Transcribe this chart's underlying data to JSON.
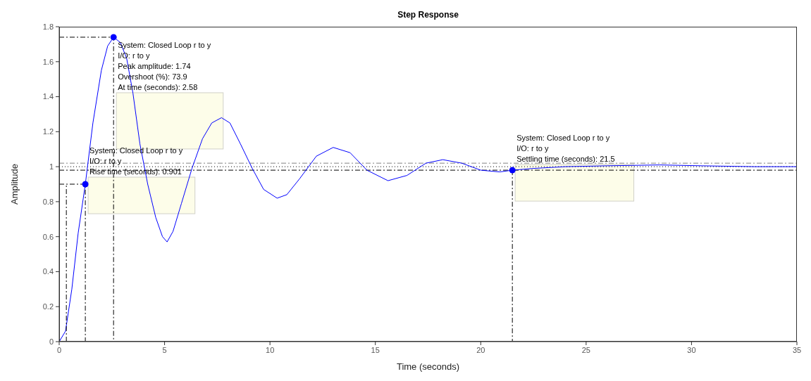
{
  "chart_data": {
    "type": "line",
    "title": "Step Response",
    "xlabel": "Time (seconds)",
    "ylabel": "Amplitude",
    "xlim": [
      0,
      35
    ],
    "xticks": [
      0,
      5,
      10,
      15,
      20,
      25,
      30,
      35
    ],
    "ylim": [
      0,
      1.8
    ],
    "yticks": [
      0,
      0.2,
      0.4,
      0.6,
      0.8,
      1,
      1.2,
      1.4,
      1.6,
      1.8
    ],
    "grid": false,
    "legend": false,
    "series": [
      {
        "type": "line",
        "color": "#0000ff",
        "line_style": "solid",
        "x": [
          0,
          0.3,
          0.6,
          0.9,
          1.24,
          1.6,
          2.0,
          2.3,
          2.58,
          2.9,
          3.2,
          3.5,
          3.83,
          4.2,
          4.58,
          4.9,
          5.12,
          5.4,
          5.8,
          6.3,
          6.8,
          7.24,
          7.7,
          8.1,
          8.6,
          9.16,
          9.7,
          10.34,
          10.8,
          11.4,
          12.2,
          13.0,
          13.8,
          14.6,
          15.6,
          16.5,
          17.4,
          18.2,
          19.1,
          20.0,
          20.9,
          21.5,
          22.5,
          24.0,
          26.0,
          28.5,
          30.5,
          33,
          35
        ],
        "values": [
          0,
          0.06,
          0.3,
          0.62,
          0.9,
          1.25,
          1.55,
          1.69,
          1.74,
          1.71,
          1.62,
          1.42,
          1.13,
          0.9,
          0.71,
          0.6,
          0.57,
          0.63,
          0.79,
          0.99,
          1.16,
          1.25,
          1.28,
          1.25,
          1.13,
          0.99,
          0.87,
          0.82,
          0.84,
          0.93,
          1.06,
          1.11,
          1.08,
          0.98,
          0.92,
          0.95,
          1.02,
          1.04,
          1.02,
          0.98,
          0.97,
          0.98,
          0.99,
          1.0,
          1.005,
          1.01,
          1.005,
          1.0,
          1.0
        ]
      },
      {
        "type": "line",
        "color": "#000000",
        "line_style": "dashed",
        "x": [
          0.34,
          0.34
        ],
        "values": [
          0,
          0.9
        ]
      },
      {
        "type": "line",
        "color": "#000000",
        "line_style": "dashed",
        "x": [
          0,
          1.24,
          1.24
        ],
        "values": [
          0.9,
          0.9,
          0
        ]
      },
      {
        "type": "line",
        "color": "#000000",
        "line_style": "dashed",
        "x": [
          0,
          2.58,
          2.58
        ],
        "values": [
          1.74,
          1.74,
          0
        ]
      },
      {
        "type": "line",
        "color": "#000000",
        "line_style": "dashed",
        "x": [
          21.5,
          21.5
        ],
        "values": [
          0.98,
          0
        ]
      },
      {
        "type": "scatter",
        "color": "#0000ff",
        "marker": "circle",
        "x": [
          1.24,
          2.58,
          21.5
        ],
        "values": [
          0.9,
          1.74,
          0.98
        ]
      }
    ],
    "ref_lines": [
      {
        "axis": "y",
        "value": 1.02,
        "color": "#808080",
        "line_style": "dashed"
      },
      {
        "axis": "y",
        "value": 1,
        "color": "#000000",
        "line_style": "dotted"
      },
      {
        "axis": "y",
        "value": 0.98,
        "color": "#000000",
        "line_style": "dashed"
      }
    ],
    "annotations": [
      {
        "text": "System: Closed Loop r to y\nI/O: r to y\nRise time (seconds): 0.901",
        "x": 1.24,
        "y": 0.9
      },
      {
        "text": "System: Closed Loop r to y\nI/O: r to y\nPeak amplitude: 1.74\nOvershoot (%): 73.9\nAt time (seconds): 2.58",
        "x": 2.58,
        "y": 1.74
      },
      {
        "text": "System: Closed Loop r to y\nI/O: r to y\nSettling time (seconds): 21.5",
        "x": 21.5,
        "y": 0.98
      }
    ]
  }
}
